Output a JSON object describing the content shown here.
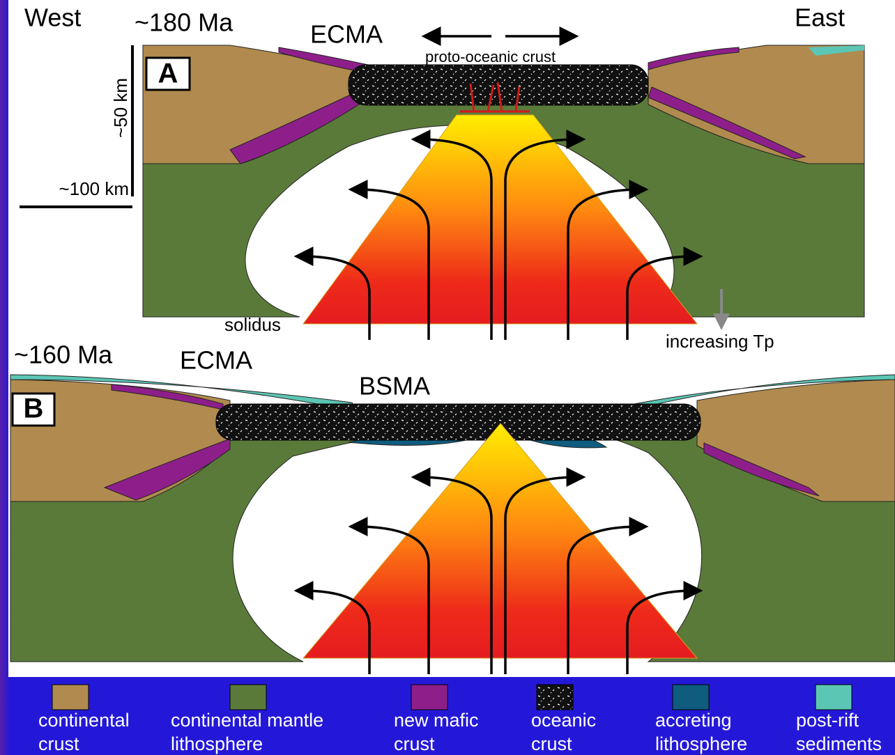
{
  "panel_a": {
    "west": "West",
    "time": "~180 Ma",
    "ecma": "ECMA",
    "proto": "proto-oceanic crust",
    "east": "East",
    "label": "A",
    "scale_vertical": "~50 km",
    "scale_horizontal": "~100 km",
    "solidus": "solidus",
    "tp": "increasing Tp"
  },
  "panel_b": {
    "time": "~160 Ma",
    "ecma": "ECMA",
    "bsma": "BSMA",
    "label": "B"
  },
  "legend": [
    {
      "lines": [
        "continental",
        "crust"
      ]
    },
    {
      "lines": [
        "continental mantle",
        "lithosphere"
      ]
    },
    {
      "lines": [
        "new mafic",
        "crust"
      ]
    },
    {
      "lines": [
        "oceanic",
        "crust"
      ]
    },
    {
      "lines": [
        "accreting",
        "lithosphere"
      ]
    },
    {
      "lines": [
        "post-rift",
        "sediments"
      ]
    }
  ]
}
